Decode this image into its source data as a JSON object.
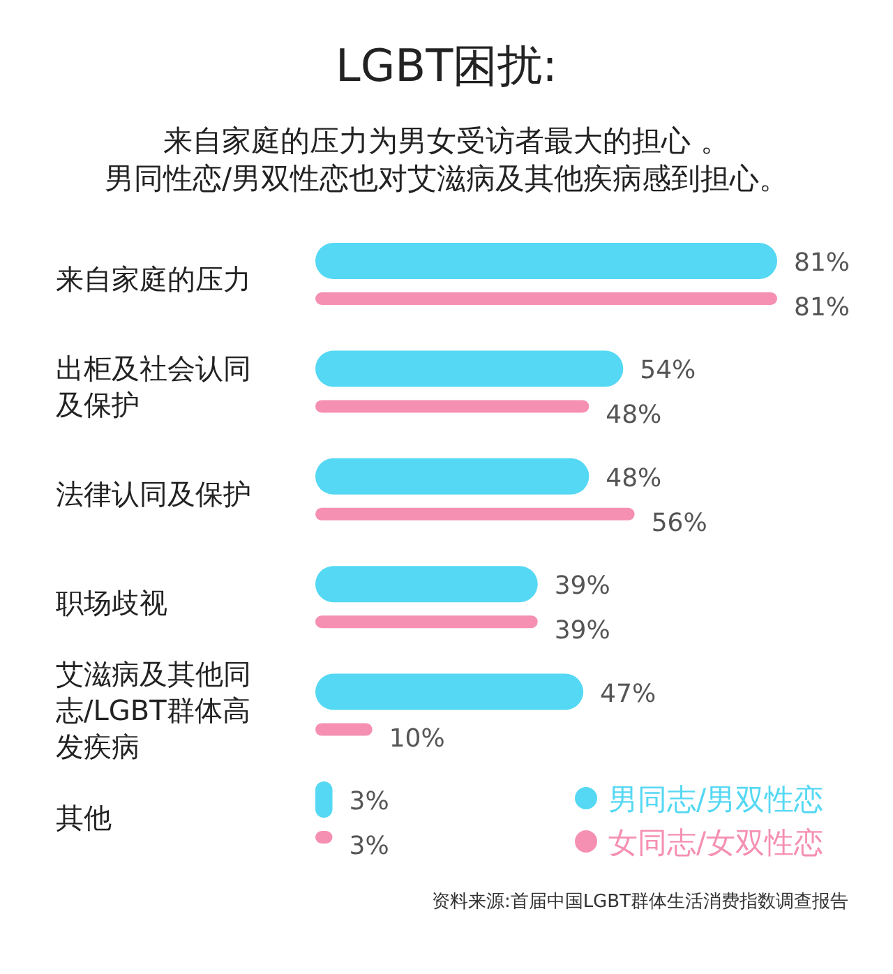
{
  "chart_data": {
    "type": "bar",
    "orientation": "horizontal",
    "title": "LGBT困扰:",
    "subtitle": "来自家庭的压力为男女受访者最大的担心 。",
    "categories": [
      "来自家庭的压力",
      "出柜及社会认同及保护",
      "法律认同及保护",
      "职场歧视",
      "艾滋病及其他同志/LGBT群体高发疾病",
      "其他"
    ],
    "series": [
      {
        "name": "男同志/男双性恋",
        "color": "#55d8f3",
        "values": [
          81,
          54,
          48,
          39,
          47,
          3
        ],
        "value_labels": [
          "81%",
          "54%",
          "48%",
          "39%",
          "47%",
          "3%"
        ]
      },
      {
        "name": "女同志/女双性恋",
        "color": "#f590b2",
        "values": [
          81,
          48,
          56,
          39,
          10,
          3
        ],
        "value_labels": [
          "81%",
          "48%",
          "56%",
          "39%",
          "10%",
          "3%"
        ]
      }
    ],
    "legend": "bottom right",
    "annotations": [
      "男同性恋/男双性恋也对艾滋病及其他疾病感到担心。",
      "资料来源:首届中国LGBT群体生活消费指数调查报告"
    ]
  }
}
